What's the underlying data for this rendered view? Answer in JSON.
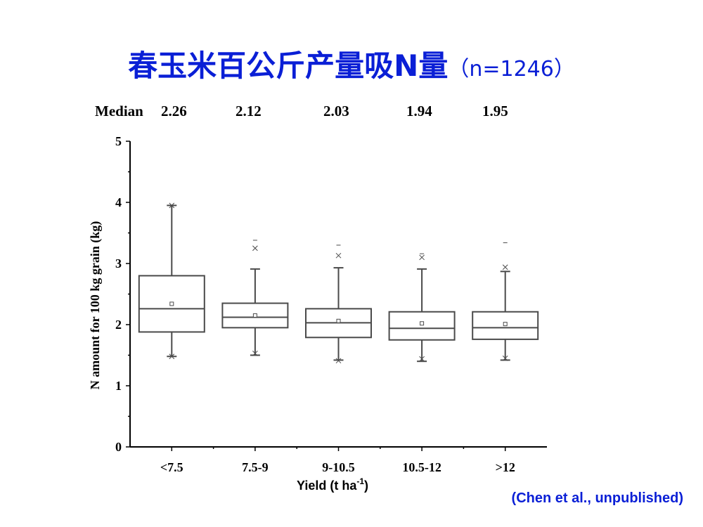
{
  "title": {
    "main": "春玉米百公斤产量吸N量",
    "sample": "（n=1246）"
  },
  "medians": {
    "label": "Median",
    "values": [
      "2.26",
      "2.12",
      "2.03",
      "1.94",
      "1.95"
    ]
  },
  "chart_data": {
    "type": "box",
    "categories": [
      "<7.5",
      "7.5-9",
      "9-10.5",
      "10.5-12",
      ">12"
    ],
    "boxes": [
      {
        "q1": 1.88,
        "median": 2.26,
        "q3": 2.8,
        "whisker_low": 1.48,
        "whisker_high": 3.95,
        "mean": 2.34,
        "min_mark": 1.48,
        "max_mark": 3.95
      },
      {
        "q1": 1.95,
        "median": 2.12,
        "q3": 2.35,
        "whisker_low": 1.5,
        "whisker_high": 2.91,
        "mean": 2.15,
        "min_mark": 1.53,
        "max_mark": 3.25,
        "max_dash": 3.38
      },
      {
        "q1": 1.79,
        "median": 2.03,
        "q3": 2.26,
        "whisker_low": 1.42,
        "whisker_high": 2.93,
        "mean": 2.06,
        "min_mark": 1.41,
        "max_mark": 3.13,
        "max_dash": 3.3
      },
      {
        "q1": 1.75,
        "median": 1.94,
        "q3": 2.21,
        "whisker_low": 1.4,
        "whisker_high": 2.91,
        "mean": 2.02,
        "min_mark": 1.44,
        "max_mark": 3.1,
        "max_dash": 3.16
      },
      {
        "q1": 1.76,
        "median": 1.95,
        "q3": 2.21,
        "whisker_low": 1.42,
        "whisker_high": 2.87,
        "mean": 2.01,
        "min_mark": 1.45,
        "max_mark": 2.94,
        "max_dash": 3.34
      }
    ],
    "xlabel_main": "Yield (t ha",
    "xlabel_sup": "-1",
    "xlabel_end": ")",
    "ylabel": "N amount for 100 kg grain (kg)",
    "ylim": [
      0,
      5
    ],
    "yticks": [
      "0",
      "1",
      "2",
      "3",
      "4",
      "5"
    ],
    "grid": false,
    "colors": {
      "box": "#4a4a4a",
      "title": "#0a1fd6"
    }
  },
  "credit": "(Chen et al., unpublished)"
}
